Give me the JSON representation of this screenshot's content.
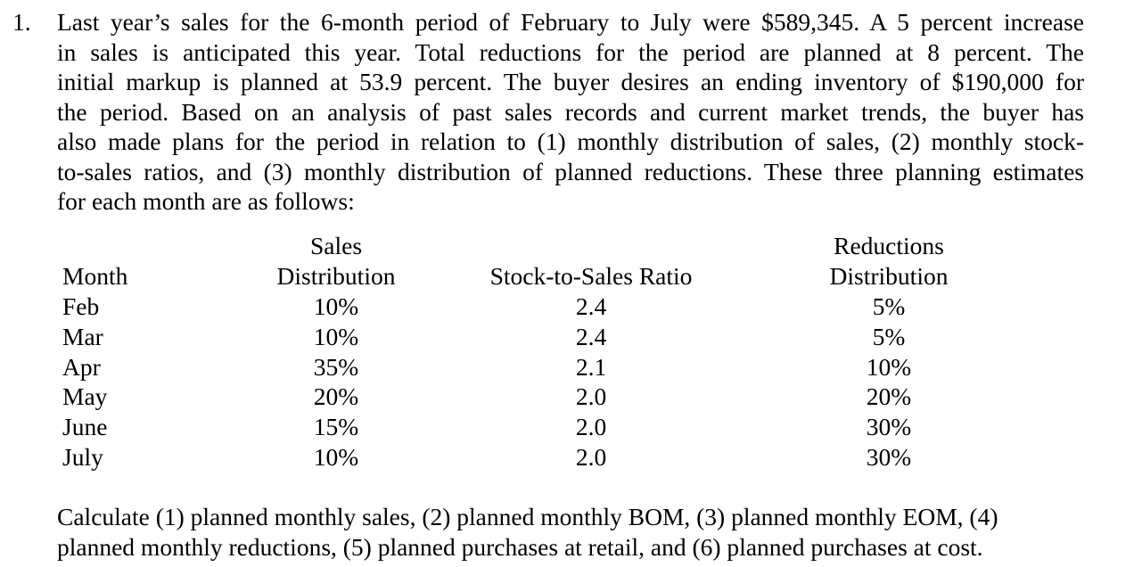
{
  "problem": {
    "number": "1.",
    "lines": [
      "Last year’s sales for the 6-month period of February to July were $589,345. A 5 percent increase",
      "in sales is anticipated this year. Total reductions for the period are planned at 8 percent. The",
      "initial markup is planned at 53.9 percent. The buyer desires an ending inventory of $190,000 for",
      "the period. Based on an analysis of past sales records and current market trends, the buyer has",
      "also made plans for the period in relation to (1) monthly distribution of sales, (2) monthly stock-",
      "to-sales ratios, and (3) monthly distribution of planned reductions. These three planning estimates",
      "for each month are as follows:"
    ]
  },
  "table": {
    "headers": {
      "month": "Month",
      "sales_line1": "Sales",
      "sales_line2": "Distribution",
      "ratio": "Stock-to-Sales Ratio",
      "reductions_line1": "Reductions",
      "reductions_line2": "Distribution"
    },
    "rows": [
      {
        "month": "Feb",
        "sales": "10%",
        "ratio": "2.4",
        "reductions": "5%"
      },
      {
        "month": "Mar",
        "sales": "10%",
        "ratio": "2.4",
        "reductions": "5%"
      },
      {
        "month": "Apr",
        "sales": "35%",
        "ratio": "2.1",
        "reductions": "10%"
      },
      {
        "month": "May",
        "sales": "20%",
        "ratio": "2.0",
        "reductions": "20%"
      },
      {
        "month": "June",
        "sales": "15%",
        "ratio": "2.0",
        "reductions": "30%"
      },
      {
        "month": "July",
        "sales": "10%",
        "ratio": "2.0",
        "reductions": "30%"
      }
    ]
  },
  "question": {
    "lines": [
      "Calculate (1) planned monthly sales, (2) planned monthly BOM, (3) planned monthly EOM, (4)",
      "planned monthly reductions, (5) planned purchases at retail, and (6) planned purchases at cost."
    ]
  }
}
